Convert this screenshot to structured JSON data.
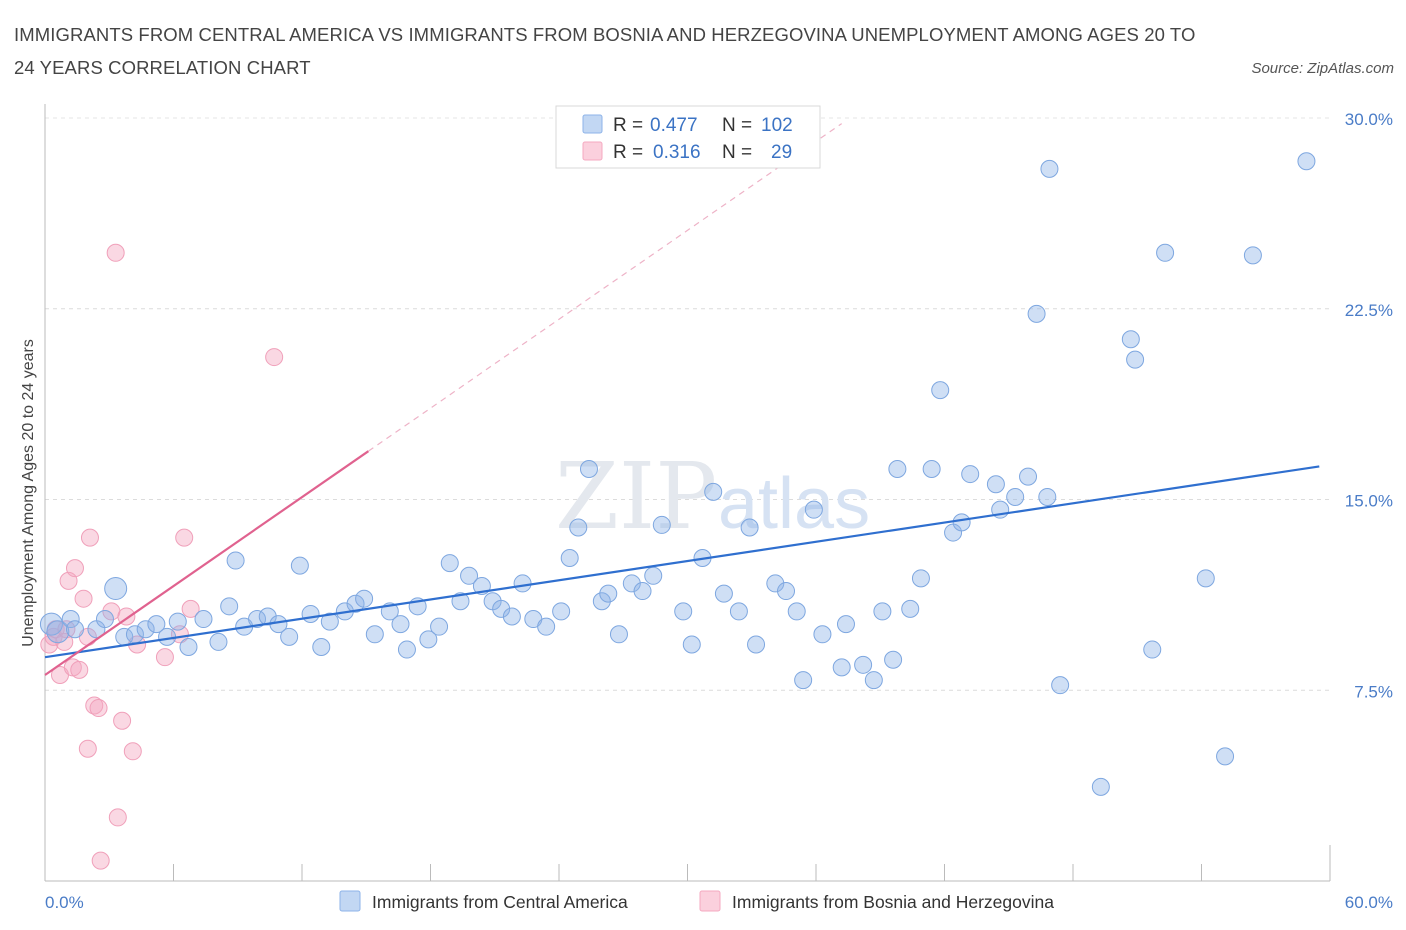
{
  "title": "IMMIGRANTS FROM CENTRAL AMERICA VS IMMIGRANTS FROM BOSNIA AND HERZEGOVINA UNEMPLOYMENT AMONG AGES 20 TO 24 YEARS CORRELATION CHART",
  "source": "Source: ZipAtlas.com",
  "watermark_a": "ZIP",
  "watermark_b": "atlas",
  "colors": {
    "blue": "#8db3e8",
    "blue_line": "#2f6fcf",
    "pink": "#f4a9c0",
    "pink_line": "#e0628f",
    "tick": "#4a7cc7"
  },
  "legend": {
    "r_label": "R =",
    "n_label": "N =",
    "blue": {
      "r": "0.477",
      "n": "102"
    },
    "pink": {
      "r": "0.316",
      "n": "29"
    }
  },
  "chart_data": {
    "type": "scatter",
    "title": "IMMIGRANTS FROM CENTRAL AMERICA VS IMMIGRANTS FROM BOSNIA AND HERZEGOVINA UNEMPLOYMENT AMONG AGES 20 TO 24 YEARS CORRELATION CHART",
    "xlabel": "",
    "ylabel": "Unemployment Among Ages 20 to 24 years",
    "xlim": [
      0,
      60
    ],
    "ylim": [
      0,
      30
    ],
    "x_tick_labels": [
      "0.0%",
      "60.0%"
    ],
    "y_tick_labels": [
      "7.5%",
      "15.0%",
      "22.5%",
      "30.0%"
    ],
    "y_ticks": [
      7.5,
      15,
      22.5,
      30
    ],
    "grid": true,
    "legend_position": "top-center",
    "series": [
      {
        "name": "Immigrants from Central America",
        "r": 0.477,
        "n": 102,
        "trend": {
          "x0": 0,
          "y0": 8.8,
          "x1": 59.5,
          "y1": 16.3
        },
        "points": [
          [
            0.3,
            10.1
          ],
          [
            0.6,
            9.8
          ],
          [
            1.2,
            10.3
          ],
          [
            1.4,
            9.9
          ],
          [
            2.4,
            9.9
          ],
          [
            2.8,
            10.3
          ],
          [
            3.3,
            11.5
          ],
          [
            3.7,
            9.6
          ],
          [
            4.2,
            9.7
          ],
          [
            4.7,
            9.9
          ],
          [
            5.2,
            10.1
          ],
          [
            5.7,
            9.6
          ],
          [
            6.2,
            10.2
          ],
          [
            6.7,
            9.2
          ],
          [
            7.4,
            10.3
          ],
          [
            8.1,
            9.4
          ],
          [
            8.6,
            10.8
          ],
          [
            8.9,
            12.6
          ],
          [
            9.3,
            10.0
          ],
          [
            9.9,
            10.3
          ],
          [
            10.4,
            10.4
          ],
          [
            10.9,
            10.1
          ],
          [
            11.4,
            9.6
          ],
          [
            11.9,
            12.4
          ],
          [
            12.4,
            10.5
          ],
          [
            12.9,
            9.2
          ],
          [
            13.3,
            10.2
          ],
          [
            14.0,
            10.6
          ],
          [
            14.5,
            10.9
          ],
          [
            14.9,
            11.1
          ],
          [
            15.4,
            9.7
          ],
          [
            16.1,
            10.6
          ],
          [
            16.6,
            10.1
          ],
          [
            16.9,
            9.1
          ],
          [
            17.4,
            10.8
          ],
          [
            17.9,
            9.5
          ],
          [
            18.4,
            10.0
          ],
          [
            18.9,
            12.5
          ],
          [
            19.4,
            11.0
          ],
          [
            19.8,
            12.0
          ],
          [
            20.4,
            11.6
          ],
          [
            20.9,
            11.0
          ],
          [
            21.3,
            10.7
          ],
          [
            21.8,
            10.4
          ],
          [
            22.3,
            11.7
          ],
          [
            22.8,
            10.3
          ],
          [
            23.4,
            10.0
          ],
          [
            24.1,
            10.6
          ],
          [
            24.5,
            12.7
          ],
          [
            24.9,
            13.9
          ],
          [
            25.4,
            16.2
          ],
          [
            26.0,
            11.0
          ],
          [
            26.3,
            11.3
          ],
          [
            26.8,
            9.7
          ],
          [
            27.4,
            11.7
          ],
          [
            27.9,
            11.4
          ],
          [
            28.4,
            12.0
          ],
          [
            28.8,
            14.0
          ],
          [
            29.8,
            10.6
          ],
          [
            30.2,
            9.3
          ],
          [
            30.7,
            12.7
          ],
          [
            31.2,
            15.3
          ],
          [
            31.7,
            11.3
          ],
          [
            32.4,
            10.6
          ],
          [
            32.9,
            13.9
          ],
          [
            33.2,
            9.3
          ],
          [
            34.1,
            11.7
          ],
          [
            34.6,
            11.4
          ],
          [
            35.1,
            10.6
          ],
          [
            35.4,
            7.9
          ],
          [
            35.9,
            14.6
          ],
          [
            36.3,
            9.7
          ],
          [
            37.2,
            8.4
          ],
          [
            37.4,
            10.1
          ],
          [
            38.2,
            8.5
          ],
          [
            38.7,
            7.9
          ],
          [
            39.1,
            10.6
          ],
          [
            39.6,
            8.7
          ],
          [
            39.8,
            16.2
          ],
          [
            40.4,
            10.7
          ],
          [
            40.9,
            11.9
          ],
          [
            41.4,
            16.2
          ],
          [
            41.8,
            19.3
          ],
          [
            42.4,
            13.7
          ],
          [
            42.8,
            14.1
          ],
          [
            43.2,
            16.0
          ],
          [
            44.4,
            15.6
          ],
          [
            44.6,
            14.6
          ],
          [
            45.3,
            15.1
          ],
          [
            45.9,
            15.9
          ],
          [
            46.3,
            22.3
          ],
          [
            46.8,
            15.1
          ],
          [
            46.9,
            28.0
          ],
          [
            47.4,
            7.7
          ],
          [
            49.3,
            3.7
          ],
          [
            50.7,
            21.3
          ],
          [
            50.9,
            20.5
          ],
          [
            51.7,
            9.1
          ],
          [
            52.3,
            24.7
          ],
          [
            54.2,
            11.9
          ],
          [
            55.1,
            4.9
          ],
          [
            56.4,
            24.6
          ],
          [
            58.9,
            28.3
          ]
        ]
      },
      {
        "name": "Immigrants from Bosnia and Herzegovina",
        "r": 0.316,
        "n": 29,
        "trend": {
          "x0": 0,
          "y0": 8.1,
          "x1": 15.1,
          "y1": 16.9
        },
        "points": [
          [
            0.2,
            9.3
          ],
          [
            0.4,
            9.6
          ],
          [
            0.5,
            9.9
          ],
          [
            0.7,
            8.1
          ],
          [
            0.9,
            9.4
          ],
          [
            1.0,
            9.9
          ],
          [
            1.1,
            11.8
          ],
          [
            1.3,
            8.4
          ],
          [
            1.4,
            12.3
          ],
          [
            1.6,
            8.3
          ],
          [
            1.8,
            11.1
          ],
          [
            2.0,
            9.6
          ],
          [
            2.0,
            5.2
          ],
          [
            2.1,
            13.5
          ],
          [
            2.3,
            6.9
          ],
          [
            2.5,
            6.8
          ],
          [
            2.6,
            0.8
          ],
          [
            3.1,
            10.6
          ],
          [
            3.3,
            24.7
          ],
          [
            3.4,
            2.5
          ],
          [
            3.6,
            6.3
          ],
          [
            3.8,
            10.4
          ],
          [
            4.1,
            5.1
          ],
          [
            4.3,
            9.3
          ],
          [
            5.6,
            8.8
          ],
          [
            6.3,
            9.7
          ],
          [
            6.5,
            13.5
          ],
          [
            6.8,
            10.7
          ],
          [
            10.7,
            20.6
          ]
        ]
      }
    ]
  },
  "bottom_legend": {
    "blue": "Immigrants from Central America",
    "pink": "Immigrants from Bosnia and Herzegovina"
  }
}
